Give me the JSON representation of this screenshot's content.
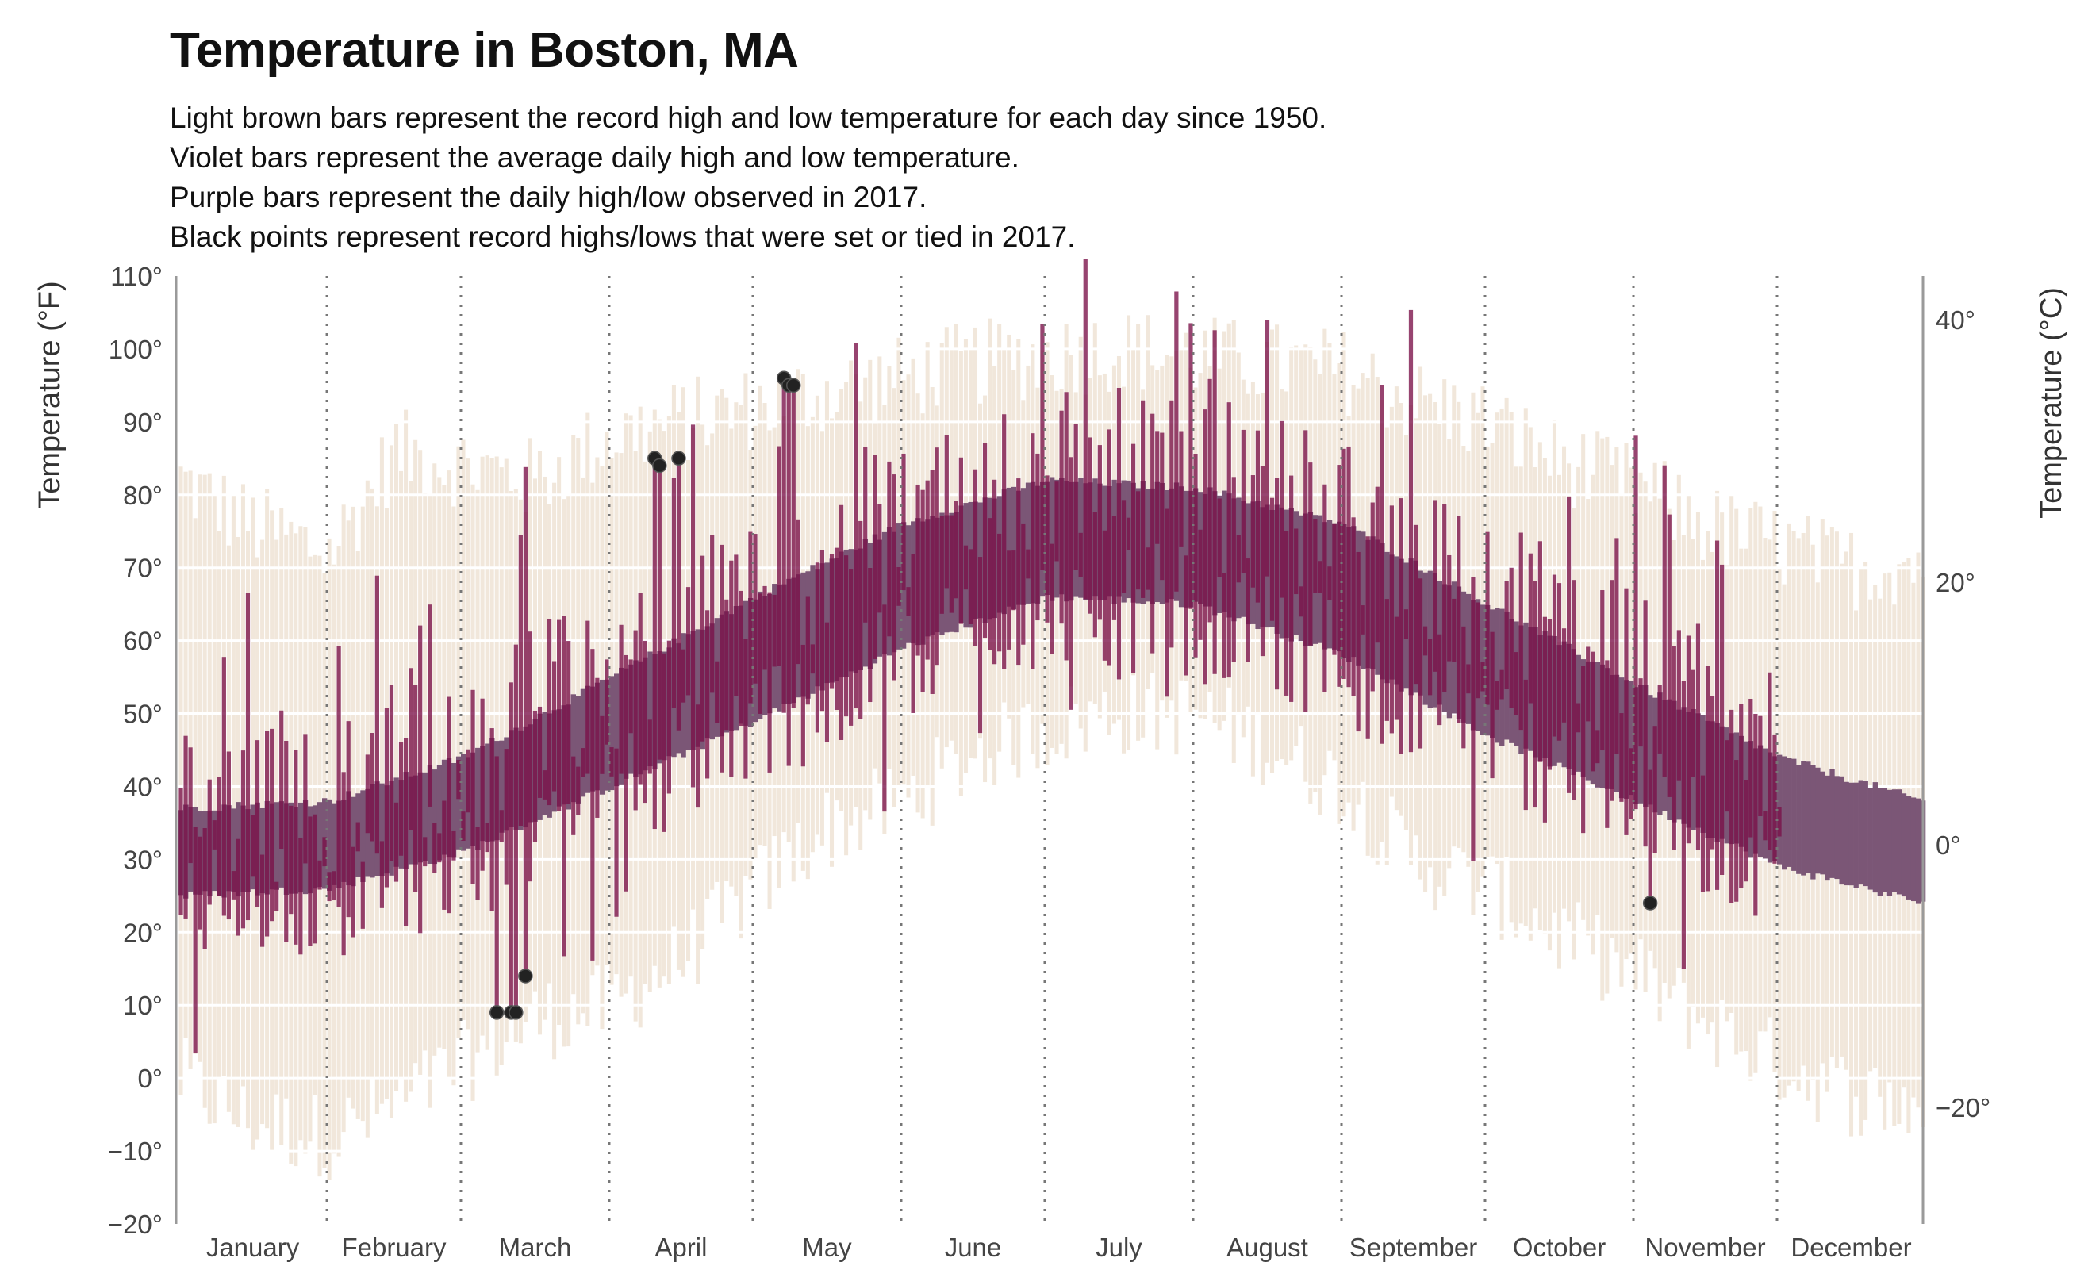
{
  "chart_data": {
    "type": "bar",
    "title": "Temperature in Boston, MA",
    "subtitle_lines": [
      "Light brown bars represent the record high and low temperature for each day since 1950.",
      "Violet bars represent the average daily high and low temperature.",
      "Purple bars represent the daily high/low observed in 2017.",
      "Black points represent record highs/lows that were set or tied in 2017."
    ],
    "ylabel_left": "Temperature (°F)",
    "ylabel_right": "Temperature (°C)",
    "ylim_f": [
      -20,
      110
    ],
    "yticks_f": [
      "−20°",
      "−10°",
      "0°",
      "10°",
      "20°",
      "30°",
      "40°",
      "50°",
      "60°",
      "70°",
      "80°",
      "90°",
      "100°",
      "110°"
    ],
    "yticks_c": [
      "−20°",
      "0°",
      "20°",
      "40°"
    ],
    "months": [
      "January",
      "February",
      "March",
      "April",
      "May",
      "June",
      "July",
      "August",
      "September",
      "October",
      "November",
      "December"
    ],
    "grid": true,
    "colors": {
      "record": "#f1e7db",
      "average": "#7b5676",
      "observed_2017": "#7a1048",
      "record_point": "#222222",
      "gridline": "#ffffff",
      "month_divider": "#777777"
    },
    "record_points_2017": [
      {
        "day": 67,
        "temp_f": 9
      },
      {
        "day": 70,
        "temp_f": 9
      },
      {
        "day": 71,
        "temp_f": 9
      },
      {
        "day": 73,
        "temp_f": 14
      },
      {
        "day": 100,
        "temp_f": 85
      },
      {
        "day": 101,
        "temp_f": 84
      },
      {
        "day": 105,
        "temp_f": 85
      },
      {
        "day": 127,
        "temp_f": 96
      },
      {
        "day": 128,
        "temp_f": 95
      },
      {
        "day": 129,
        "temp_f": 95
      },
      {
        "day": 308,
        "temp_f": 24
      }
    ],
    "series": [
      {
        "name": "Record high/low",
        "high_anchors": [
          [
            1,
            82
          ],
          [
            15,
            76
          ],
          [
            32,
            72
          ],
          [
            46,
            86
          ],
          [
            60,
            84
          ],
          [
            75,
            82
          ],
          [
            91,
            88
          ],
          [
            105,
            90
          ],
          [
            121,
            92
          ],
          [
            135,
            94
          ],
          [
            152,
            96
          ],
          [
            166,
            98
          ],
          [
            182,
            99
          ],
          [
            196,
            100
          ],
          [
            213,
            99
          ],
          [
            227,
            98
          ],
          [
            244,
            97
          ],
          [
            258,
            93
          ],
          [
            274,
            90
          ],
          [
            288,
            85
          ],
          [
            305,
            81
          ],
          [
            319,
            76
          ],
          [
            335,
            73
          ],
          [
            349,
            70
          ],
          [
            365,
            71
          ]
        ],
        "low_anchors": [
          [
            1,
            0
          ],
          [
            15,
            -6
          ],
          [
            32,
            -8
          ],
          [
            46,
            -4
          ],
          [
            60,
            2
          ],
          [
            75,
            8
          ],
          [
            91,
            10
          ],
          [
            105,
            16
          ],
          [
            121,
            26
          ],
          [
            135,
            34
          ],
          [
            152,
            38
          ],
          [
            166,
            44
          ],
          [
            182,
            48
          ],
          [
            196,
            50
          ],
          [
            213,
            50
          ],
          [
            227,
            46
          ],
          [
            244,
            40
          ],
          [
            258,
            30
          ],
          [
            274,
            26
          ],
          [
            288,
            20
          ],
          [
            305,
            14
          ],
          [
            319,
            8
          ],
          [
            335,
            2
          ],
          [
            349,
            -2
          ],
          [
            365,
            -4
          ]
        ]
      },
      {
        "name": "Average high/low",
        "high_anchors": [
          [
            1,
            37
          ],
          [
            32,
            38
          ],
          [
            60,
            44
          ],
          [
            91,
            55
          ],
          [
            121,
            66
          ],
          [
            152,
            76
          ],
          [
            182,
            82
          ],
          [
            213,
            81
          ],
          [
            244,
            76
          ],
          [
            274,
            65
          ],
          [
            305,
            54
          ],
          [
            335,
            44
          ],
          [
            365,
            38
          ]
        ],
        "low_anchors": [
          [
            1,
            25
          ],
          [
            32,
            26
          ],
          [
            60,
            31
          ],
          [
            91,
            40
          ],
          [
            121,
            49
          ],
          [
            152,
            59
          ],
          [
            182,
            66
          ],
          [
            213,
            65
          ],
          [
            244,
            58
          ],
          [
            274,
            47
          ],
          [
            305,
            38
          ],
          [
            335,
            29
          ],
          [
            365,
            24
          ]
        ]
      },
      {
        "name": "Observed 2017",
        "last_day": 335,
        "high_offset_amplitude": 12,
        "low_offset_amplitude": 9
      }
    ]
  }
}
